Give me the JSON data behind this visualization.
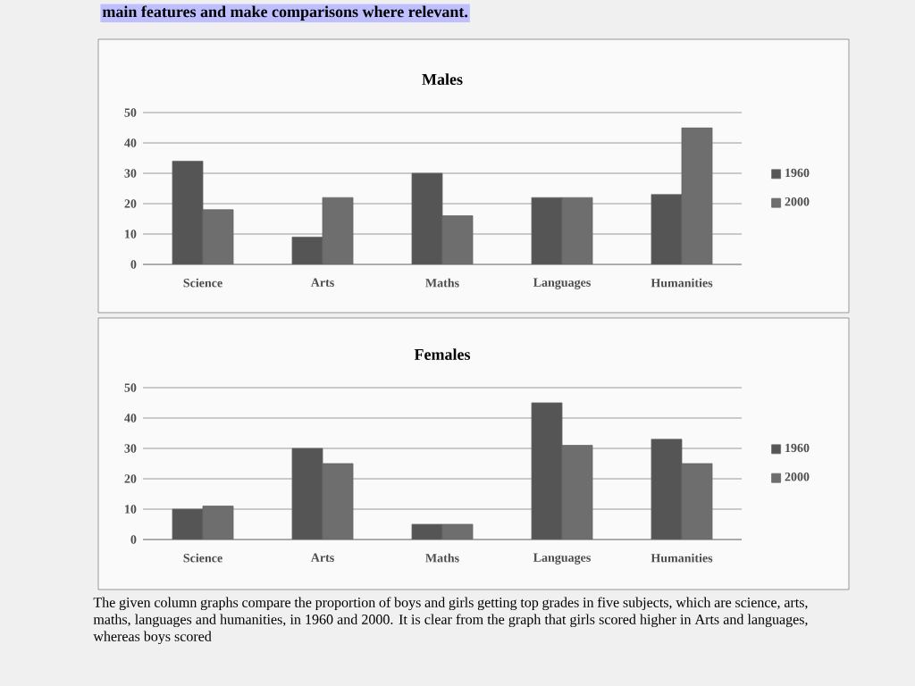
{
  "chart_data": [
    {
      "type": "bar",
      "title": "Males",
      "categories": [
        "Science",
        "Arts",
        "Maths",
        "Languages",
        "Humanities"
      ],
      "series": [
        {
          "name": "1960",
          "color": "#555555",
          "values": [
            34,
            9,
            30,
            22,
            23
          ]
        },
        {
          "name": "2000",
          "color": "#6e6e6e",
          "values": [
            18,
            22,
            16,
            22,
            45
          ]
        }
      ],
      "ylim": [
        0,
        50
      ],
      "yticks": [
        0,
        10,
        20,
        30,
        40,
        50
      ],
      "grid": "y",
      "legend": "right",
      "annotations": [
        "main features and make comparisons where relevant."
      ]
    },
    {
      "type": "bar",
      "title": "Females",
      "categories": [
        "Science",
        "Arts",
        "Maths",
        "Languages",
        "Humanities"
      ],
      "series": [
        {
          "name": "1960",
          "color": "#555555",
          "values": [
            10,
            30,
            5,
            45,
            33
          ]
        },
        {
          "name": "2000",
          "color": "#6e6e6e",
          "values": [
            11,
            25,
            5,
            31,
            25
          ]
        }
      ],
      "ylim": [
        0,
        50
      ],
      "yticks": [
        0,
        10,
        20,
        30,
        40,
        50
      ],
      "grid": "y",
      "legend": "right",
      "annotations": [
        "The given column graphs compare the proportion of boys and girls getting top grades in five subjects, which are science, arts, maths, languages and humanities, in 1960 and 2000. It is clear from the graph that girls scored higher in Arts and languages, whereas boys scored"
      ]
    }
  ]
}
